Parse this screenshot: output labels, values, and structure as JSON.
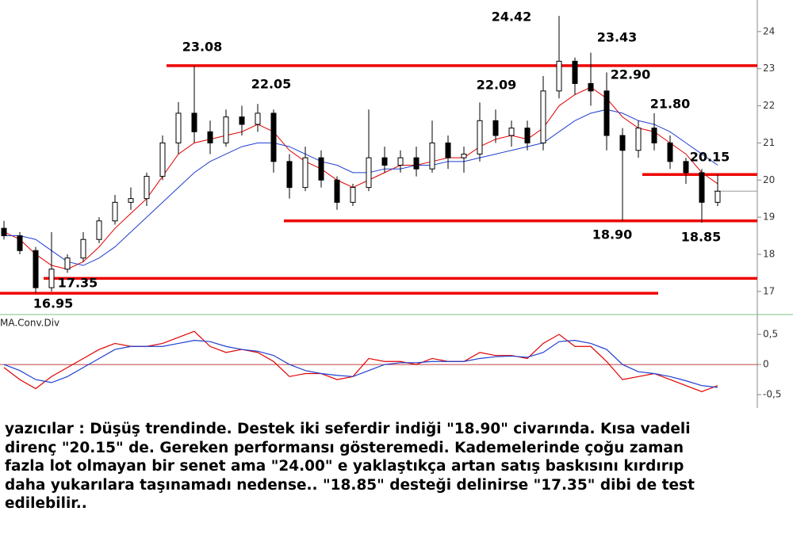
{
  "chart_data": [
    {
      "type": "candlestick",
      "open": [
        18.7,
        18.5,
        18.1,
        17.1,
        17.6,
        17.9,
        18.4,
        18.9,
        19.4,
        19.5,
        20.1,
        21.0,
        21.8,
        21.3,
        21.0,
        21.7,
        21.5,
        21.8,
        20.5,
        19.8,
        20.6,
        20.0,
        19.4,
        19.8,
        20.6,
        20.4,
        20.6,
        20.3,
        21.0,
        20.6,
        20.7,
        21.6,
        21.2,
        21.4,
        21.0,
        22.4,
        23.2,
        22.6,
        22.4,
        21.2,
        20.8,
        21.4,
        21.0,
        20.5,
        20.2,
        19.4
      ],
      "high": [
        18.9,
        18.6,
        18.2,
        18.6,
        18.0,
        18.6,
        19.0,
        19.6,
        19.8,
        20.2,
        21.2,
        22.1,
        23.08,
        21.6,
        21.9,
        22.0,
        22.05,
        21.9,
        20.7,
        20.9,
        20.8,
        20.1,
        19.9,
        21.9,
        20.9,
        20.8,
        20.9,
        21.6,
        21.2,
        20.9,
        22.09,
        21.9,
        21.6,
        21.6,
        22.8,
        24.42,
        23.3,
        23.43,
        22.9,
        21.4,
        21.6,
        21.8,
        21.2,
        20.6,
        20.3,
        20.15
      ],
      "low": [
        18.4,
        18.0,
        16.95,
        17.0,
        17.5,
        17.8,
        18.3,
        18.8,
        19.2,
        19.3,
        20.0,
        20.7,
        21.0,
        20.7,
        20.9,
        21.2,
        21.3,
        20.2,
        19.5,
        19.7,
        19.8,
        19.2,
        19.3,
        19.7,
        20.2,
        20.2,
        20.1,
        20.2,
        20.3,
        20.2,
        20.5,
        21.0,
        20.9,
        20.8,
        20.8,
        22.2,
        22.3,
        22.0,
        20.8,
        18.9,
        20.6,
        20.8,
        20.3,
        19.9,
        18.85,
        19.3
      ],
      "close": [
        18.5,
        18.1,
        17.1,
        17.6,
        17.9,
        18.4,
        18.9,
        19.4,
        19.5,
        20.1,
        21.0,
        21.8,
        21.3,
        21.0,
        21.7,
        21.5,
        21.8,
        20.5,
        19.8,
        20.6,
        20.0,
        19.4,
        19.8,
        20.6,
        20.4,
        20.6,
        20.3,
        21.0,
        20.6,
        20.7,
        21.6,
        21.2,
        21.4,
        21.0,
        22.4,
        23.2,
        22.6,
        22.4,
        21.2,
        20.8,
        21.4,
        21.0,
        20.5,
        20.2,
        19.4,
        19.7
      ],
      "series": [
        {
          "color": "#e00000",
          "values": [
            18.6,
            18.4,
            18.0,
            17.7,
            17.6,
            17.8,
            18.2,
            18.7,
            19.1,
            19.5,
            20.1,
            20.7,
            21.0,
            21.1,
            21.2,
            21.3,
            21.5,
            21.3,
            20.8,
            20.5,
            20.3,
            20.0,
            19.8,
            20.0,
            20.2,
            20.4,
            20.4,
            20.5,
            20.6,
            20.6,
            20.9,
            21.1,
            21.2,
            21.1,
            21.4,
            22.0,
            22.3,
            22.5,
            22.2,
            21.7,
            21.4,
            21.3,
            21.0,
            20.7,
            20.2,
            19.9
          ]
        },
        {
          "color": "#1f3fd0",
          "values": [
            18.5,
            18.5,
            18.4,
            18.1,
            17.8,
            17.7,
            17.9,
            18.2,
            18.6,
            19.0,
            19.4,
            19.8,
            20.2,
            20.5,
            20.7,
            20.9,
            21.0,
            21.0,
            20.9,
            20.7,
            20.5,
            20.4,
            20.2,
            20.2,
            20.3,
            20.3,
            20.4,
            20.4,
            20.5,
            20.5,
            20.6,
            20.7,
            20.8,
            20.9,
            21.0,
            21.3,
            21.6,
            21.8,
            21.9,
            21.8,
            21.6,
            21.5,
            21.3,
            21.0,
            20.7,
            20.4
          ]
        }
      ],
      "levels": [
        23.08,
        18.9,
        17.35,
        16.95,
        20.15
      ],
      "level_color": "#ee0000",
      "last_price": 19.7,
      "annotations": [
        "23.08",
        "22.05",
        "24.42",
        "23.43",
        "22.90",
        "22.09",
        "21.80",
        "20.15",
        "18.90",
        "18.85",
        "17.35",
        "16.95"
      ],
      "ylim": [
        16.42,
        24.85
      ],
      "yticks": [
        17,
        18,
        19,
        20,
        21,
        22,
        23,
        24
      ]
    },
    {
      "type": "line",
      "title": "MA.Conv.Div",
      "series": [
        {
          "color": "#e00000",
          "values": [
            -0.05,
            -0.25,
            -0.4,
            -0.2,
            -0.05,
            0.1,
            0.25,
            0.35,
            0.3,
            0.3,
            0.35,
            0.45,
            0.55,
            0.3,
            0.2,
            0.25,
            0.2,
            0.05,
            -0.2,
            -0.15,
            -0.15,
            -0.25,
            -0.2,
            0.1,
            0.05,
            0.05,
            0,
            0.1,
            0.05,
            0.05,
            0.2,
            0.15,
            0.15,
            0.1,
            0.35,
            0.5,
            0.3,
            0.3,
            0.05,
            -0.25,
            -0.2,
            -0.15,
            -0.25,
            -0.35,
            -0.45,
            -0.35
          ]
        },
        {
          "color": "#1f3fd0",
          "values": [
            0,
            -0.1,
            -0.25,
            -0.3,
            -0.2,
            -0.05,
            0.1,
            0.25,
            0.3,
            0.3,
            0.3,
            0.35,
            0.4,
            0.38,
            0.3,
            0.25,
            0.22,
            0.15,
            0,
            -0.1,
            -0.15,
            -0.18,
            -0.2,
            -0.1,
            0,
            0.03,
            0.03,
            0.05,
            0.05,
            0.05,
            0.1,
            0.13,
            0.14,
            0.12,
            0.2,
            0.38,
            0.4,
            0.35,
            0.25,
            0,
            -0.12,
            -0.15,
            -0.2,
            -0.27,
            -0.35,
            -0.38
          ]
        }
      ],
      "zero_line": 0,
      "ylim": [
        -0.63,
        0.816
      ],
      "yticks": [
        {
          "value": 0.5,
          "label": "0,5"
        },
        0,
        {
          "value": -0.5,
          "label": "-0,5"
        }
      ]
    }
  ],
  "commentary": [
    "yazıcılar : Düşüş trendinde. Destek iki seferdir indiği \"18.90\" civarında. Kısa vadeli",
    "direnç \"20.15\" de. Gereken performansı gösteremedi. Kademelerinde çoğu zaman",
    "fazla lot olmayan bir senet ama \"24.00\" e yaklaştıkça artan satış baskısını kırdırıp",
    "daha yukarılara taşınamadı nedense.. \"18.85\" desteği delinirse \"17.35\" dibi de test",
    "edilebilir.."
  ]
}
